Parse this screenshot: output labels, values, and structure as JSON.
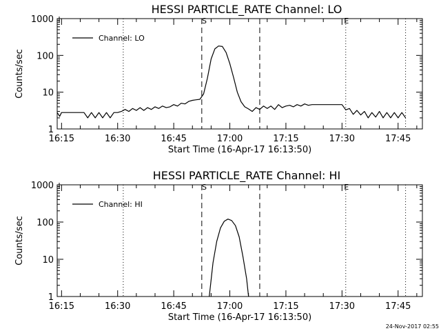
{
  "footer_timestamp": "24-Nov-2017 02:55",
  "colors": {
    "line": "#000000",
    "background": "#ffffff"
  },
  "chart_data": [
    {
      "type": "line",
      "title": "HESSI PARTICLE_RATE Channel: LO",
      "xlabel": "Start Time (16-Apr-17 16:13:50)",
      "ylabel": "Counts/sec",
      "y_scale": "log",
      "ylim": [
        1,
        1000
      ],
      "xlim": [
        "16:13:50",
        "17:51:30"
      ],
      "x_ticks": [
        "16:15",
        "16:30",
        "16:45",
        "17:00",
        "17:15",
        "17:30",
        "17:45"
      ],
      "y_ticks": [
        "1",
        "10",
        "100",
        "1000"
      ],
      "legend": {
        "position": "top-left",
        "entries": [
          "Channel: LO"
        ]
      },
      "flag_labels": [
        "S",
        "E"
      ],
      "dashed_markers": [
        "16:52:30",
        "17:08:00"
      ],
      "dotted_markers": [
        "16:31:30",
        "17:31:00",
        "17:47:00"
      ],
      "flag_positions": [
        "16:53:00",
        "17:31:00"
      ],
      "series": [
        {
          "name": "Channel: LO",
          "x": [
            "16:13:50",
            "16:14:30",
            "16:15:00",
            "16:15:30",
            "16:17:00",
            "16:19:00",
            "16:21:00",
            "16:22:00",
            "16:23:00",
            "16:24:00",
            "16:25:00",
            "16:26:00",
            "16:27:00",
            "16:28:00",
            "16:29:00",
            "16:30:00",
            "16:31:00",
            "16:32:00",
            "16:33:00",
            "16:34:00",
            "16:35:00",
            "16:36:00",
            "16:37:00",
            "16:38:00",
            "16:39:00",
            "16:40:00",
            "16:41:00",
            "16:42:00",
            "16:43:00",
            "16:44:00",
            "16:45:00",
            "16:46:00",
            "16:47:00",
            "16:48:00",
            "16:49:00",
            "16:50:00",
            "16:51:00",
            "16:52:00",
            "16:53:00",
            "16:54:00",
            "16:55:00",
            "16:56:00",
            "16:57:00",
            "16:58:00",
            "16:59:00",
            "17:00:00",
            "17:01:00",
            "17:02:00",
            "17:03:00",
            "17:04:00",
            "17:05:00",
            "17:06:00",
            "17:07:00",
            "17:08:00",
            "17:09:00",
            "17:10:00",
            "17:11:00",
            "17:12:00",
            "17:13:00",
            "17:14:00",
            "17:15:00",
            "17:16:00",
            "17:17:00",
            "17:18:00",
            "17:19:00",
            "17:20:00",
            "17:21:00",
            "17:22:00",
            "17:23:00",
            "17:24:00",
            "17:25:00",
            "17:26:00",
            "17:27:00",
            "17:28:00",
            "17:29:00",
            "17:30:00",
            "17:31:00",
            "17:32:00",
            "17:33:00",
            "17:34:00",
            "17:35:00",
            "17:36:00",
            "17:37:00",
            "17:38:00",
            "17:39:00",
            "17:40:00",
            "17:41:00",
            "17:42:00",
            "17:43:00",
            "17:44:00",
            "17:45:00",
            "17:46:00",
            "17:47:00"
          ],
          "y": [
            2.8,
            2.2,
            2.8,
            2.8,
            2.8,
            2.8,
            2.8,
            2.0,
            2.8,
            2.0,
            2.8,
            2.0,
            2.8,
            2.0,
            2.8,
            2.8,
            3.0,
            3.4,
            3.0,
            3.6,
            3.2,
            3.8,
            3.2,
            3.8,
            3.4,
            4.0,
            3.6,
            4.2,
            3.8,
            4.0,
            4.6,
            4.2,
            5.0,
            4.8,
            5.6,
            6.0,
            6.2,
            6.4,
            9.0,
            24,
            80,
            150,
            180,
            175,
            120,
            60,
            25,
            10,
            5.5,
            4.0,
            3.5,
            3.0,
            3.8,
            3.4,
            4.2,
            3.6,
            4.2,
            3.4,
            4.6,
            3.8,
            4.2,
            4.4,
            4.0,
            4.6,
            4.2,
            4.8,
            4.4,
            4.6,
            4.6,
            4.6,
            4.6,
            4.6,
            4.6,
            4.6,
            4.6,
            4.6,
            3.3,
            3.6,
            2.5,
            3.2,
            2.4,
            3.0,
            2.0,
            2.8,
            2.1,
            3.0,
            2.0,
            2.8,
            2.0,
            2.8,
            2.0,
            2.8,
            2.0
          ]
        }
      ]
    },
    {
      "type": "line",
      "title": "HESSI PARTICLE_RATE Channel: HI",
      "xlabel": "Start Time (16-Apr-17 16:13:50)",
      "ylabel": "Counts/sec",
      "y_scale": "log",
      "ylim": [
        1,
        1000
      ],
      "xlim": [
        "16:13:50",
        "17:51:30"
      ],
      "x_ticks": [
        "16:15",
        "16:30",
        "16:45",
        "17:00",
        "17:15",
        "17:30",
        "17:45"
      ],
      "y_ticks": [
        "1",
        "10",
        "100",
        "1000"
      ],
      "legend": {
        "position": "top-left",
        "entries": [
          "Channel: HI"
        ]
      },
      "flag_labels": [
        "S",
        "E"
      ],
      "dashed_markers": [
        "16:52:30",
        "17:08:00"
      ],
      "dotted_markers": [
        "16:31:30",
        "17:31:00",
        "17:47:00"
      ],
      "flag_positions": [
        "16:53:00",
        "17:31:00"
      ],
      "series": [
        {
          "name": "Channel: HI",
          "x": [
            "16:54:30",
            "16:55:30",
            "16:56:30",
            "16:57:30",
            "16:58:30",
            "16:59:30",
            "17:00:30",
            "17:01:30",
            "17:02:30",
            "17:03:30",
            "17:04:30",
            "17:05:00"
          ],
          "y": [
            1.0,
            8,
            30,
            70,
            105,
            120,
            110,
            80,
            40,
            12,
            3,
            1.0
          ]
        }
      ]
    }
  ]
}
